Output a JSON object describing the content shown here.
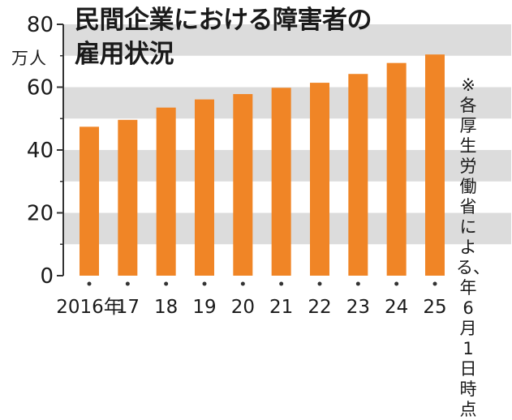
{
  "chart_data": {
    "type": "bar",
    "title_line1": "民間企業における障害者の",
    "title_line2": "雇用状況",
    "unit_label": "万人",
    "categories": [
      "2016年",
      "17",
      "18",
      "19",
      "20",
      "21",
      "22",
      "23",
      "24",
      "25"
    ],
    "values": [
      47.4,
      49.6,
      53.5,
      56.1,
      57.8,
      59.8,
      61.4,
      64.2,
      67.7,
      70.4
    ],
    "ylim": [
      0,
      80
    ],
    "yticks": [
      0,
      20,
      40,
      60,
      80
    ],
    "grid": "alternating gray bands",
    "note_mark": "※",
    "note_text": "各厚生労働省による、年6月1日時点",
    "colors": {
      "bar": "#f08526",
      "band": "#dcdcdc",
      "axis": "#333333",
      "text": "#1a1a1a"
    }
  }
}
